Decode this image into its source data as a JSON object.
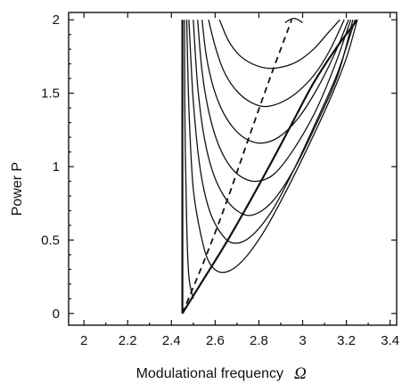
{
  "chart_data": {
    "type": "line",
    "title": "",
    "xlabel": "Modulational frequency",
    "xlabel_symbol": "Ω",
    "ylabel": "Power P",
    "xlim": [
      1.93,
      3.43
    ],
    "ylim": [
      -0.08,
      2.05
    ],
    "xticks": [
      "2",
      "2.2",
      "2.4",
      "2.6",
      "2.8",
      "3",
      "3.2",
      "3.4"
    ],
    "yticks": [
      "0",
      "0.5",
      "1",
      "1.5",
      "2"
    ],
    "grid": false,
    "legend": "none",
    "series": [
      {
        "style": "thick",
        "x": [
          2.45,
          2.45
        ],
        "y": [
          0,
          2
        ]
      },
      {
        "style": "thick",
        "x": [
          2.45,
          2.55,
          2.65,
          2.75,
          2.85,
          2.95,
          3.05,
          3.15,
          3.25
        ],
        "y": [
          0,
          0.24,
          0.48,
          0.74,
          1.01,
          1.29,
          1.57,
          1.8,
          2
        ]
      },
      {
        "style": "solid",
        "x": [
          2.46,
          2.462,
          2.47,
          2.48,
          2.5
        ],
        "y": [
          2,
          1.3,
          0.6,
          0.25,
          0.1
        ]
      },
      {
        "style": "solid",
        "x": [
          2.47,
          2.48,
          2.5,
          2.54,
          2.58,
          2.64,
          2.72,
          2.82,
          2.92,
          3.02,
          3.12,
          3.2,
          3.25
        ],
        "y": [
          2,
          1.4,
          0.85,
          0.5,
          0.33,
          0.28,
          0.35,
          0.55,
          0.82,
          1.12,
          1.44,
          1.74,
          2
        ]
      },
      {
        "style": "solid",
        "x": [
          2.48,
          2.5,
          2.53,
          2.57,
          2.62,
          2.68,
          2.76,
          2.86,
          2.96,
          3.06,
          3.16,
          3.24
        ],
        "y": [
          2,
          1.45,
          1.0,
          0.72,
          0.56,
          0.48,
          0.52,
          0.7,
          0.98,
          1.3,
          1.64,
          2
        ]
      },
      {
        "style": "solid",
        "x": [
          2.5,
          2.52,
          2.55,
          2.59,
          2.64,
          2.7,
          2.77,
          2.86,
          2.96,
          3.06,
          3.16,
          3.23
        ],
        "y": [
          2,
          1.55,
          1.2,
          0.96,
          0.8,
          0.7,
          0.67,
          0.76,
          0.98,
          1.28,
          1.62,
          2
        ]
      },
      {
        "style": "solid",
        "x": [
          2.52,
          2.54,
          2.57,
          2.61,
          2.66,
          2.72,
          2.79,
          2.87,
          2.96,
          3.06,
          3.15,
          3.22
        ],
        "y": [
          2,
          1.65,
          1.38,
          1.17,
          1.02,
          0.93,
          0.9,
          0.95,
          1.12,
          1.38,
          1.7,
          2
        ]
      },
      {
        "style": "solid",
        "x": [
          2.54,
          2.56,
          2.59,
          2.63,
          2.68,
          2.74,
          2.81,
          2.89,
          2.98,
          3.07,
          3.15,
          3.21
        ],
        "y": [
          2,
          1.75,
          1.55,
          1.39,
          1.27,
          1.19,
          1.16,
          1.2,
          1.33,
          1.54,
          1.78,
          2
        ]
      },
      {
        "style": "solid",
        "x": [
          2.57,
          2.6,
          2.64,
          2.69,
          2.75,
          2.82,
          2.89,
          2.97,
          3.05,
          3.12,
          3.19
        ],
        "y": [
          2,
          1.82,
          1.65,
          1.53,
          1.45,
          1.41,
          1.43,
          1.5,
          1.62,
          1.78,
          2
        ]
      },
      {
        "style": "solid",
        "x": [
          2.62,
          2.66,
          2.71,
          2.77,
          2.84,
          2.91,
          2.98,
          3.05,
          3.11,
          3.17
        ],
        "y": [
          2,
          1.86,
          1.76,
          1.7,
          1.67,
          1.68,
          1.72,
          1.8,
          1.9,
          2
        ]
      },
      {
        "style": "solid",
        "x": [
          2.92,
          2.94,
          2.96,
          2.98,
          3.0
        ],
        "y": [
          1.98,
          2.0,
          2.01,
          2.0,
          1.98
        ]
      },
      {
        "style": "dashed",
        "x": [
          2.45,
          2.55,
          2.65,
          2.75,
          2.85,
          2.95
        ],
        "y": [
          0,
          0.36,
          0.75,
          1.18,
          1.6,
          2
        ]
      }
    ]
  }
}
